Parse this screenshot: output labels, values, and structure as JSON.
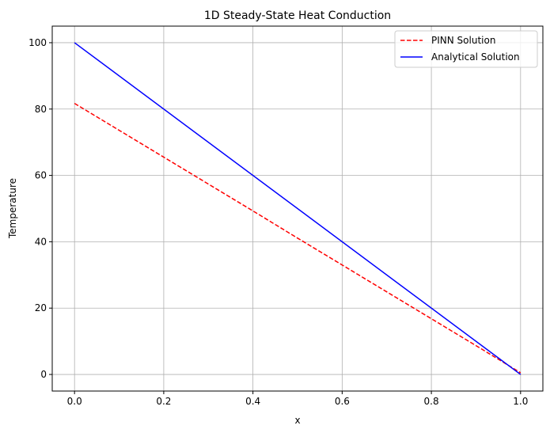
{
  "chart_data": {
    "type": "line",
    "title": "1D Steady-State Heat Conduction",
    "xlabel": "x",
    "ylabel": "Temperature",
    "xlim": [
      -0.05,
      1.05
    ],
    "ylim": [
      -5,
      105
    ],
    "xticks": [
      0.0,
      0.2,
      0.4,
      0.6,
      0.8,
      1.0
    ],
    "xtick_labels": [
      "0.0",
      "0.2",
      "0.4",
      "0.6",
      "0.8",
      "1.0"
    ],
    "yticks": [
      0,
      20,
      40,
      60,
      80,
      100
    ],
    "ytick_labels": [
      "0",
      "20",
      "40",
      "60",
      "80",
      "100"
    ],
    "grid": true,
    "legend": "top-right",
    "series": [
      {
        "name": "PINN Solution",
        "color": "#ff0000",
        "style": "dashed",
        "x": [
          0,
          0.1,
          0.2,
          0.3,
          0.4,
          0.5,
          0.6,
          0.7,
          0.8,
          0.9,
          1.0
        ],
        "y": [
          81.7,
          73.6,
          65.5,
          57.4,
          49.3,
          41.1,
          33.0,
          24.9,
          16.8,
          8.7,
          0.5
        ]
      },
      {
        "name": "Analytical Solution",
        "color": "#0000ff",
        "style": "solid",
        "x": [
          0,
          1.0
        ],
        "y": [
          100,
          0
        ]
      }
    ]
  }
}
